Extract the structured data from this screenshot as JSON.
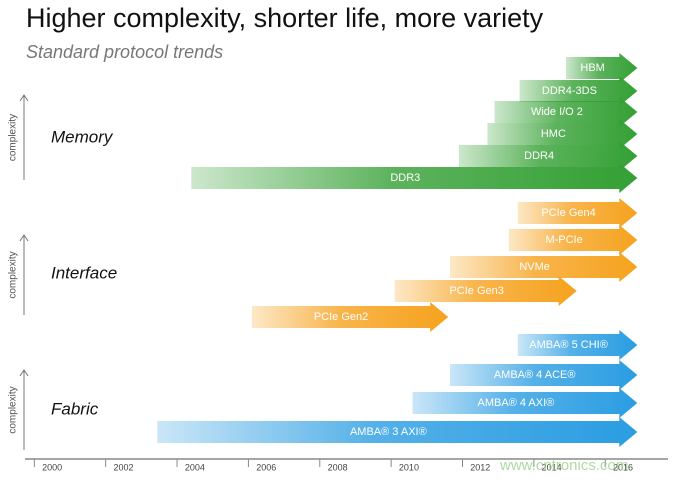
{
  "header": {
    "title": "Higher complexity, shorter life, more variety",
    "subtitle": "Standard protocol trends"
  },
  "axis": {
    "xlim": [
      1999.24,
      2017.26
    ],
    "ticks": [
      2000,
      2002,
      2004,
      2006,
      2008,
      2010,
      2012,
      2014,
      2016
    ],
    "y_label": "complexity"
  },
  "groups": [
    {
      "label": "Memory",
      "color": "#34a034",
      "arrows": [
        {
          "label": "HBM",
          "start": 2014.4,
          "end": 2016.4
        },
        {
          "label": "DDR4-3DS",
          "start": 2013.1,
          "end": 2016.4
        },
        {
          "label": "Wide I/O 2",
          "start": 2012.4,
          "end": 2016.4
        },
        {
          "label": "HMC",
          "start": 2012.2,
          "end": 2016.4
        },
        {
          "label": "DDR4",
          "start": 2011.4,
          "end": 2016.4
        },
        {
          "label": "DDR3",
          "start": 2003.9,
          "end": 2016.4
        }
      ]
    },
    {
      "label": "Interface",
      "color": "#f6a21e",
      "arrows": [
        {
          "label": "PCIe Gen4",
          "start": 2013.05,
          "end": 2016.4
        },
        {
          "label": "M-PCIe",
          "start": 2012.8,
          "end": 2016.4
        },
        {
          "label": "NVMe",
          "start": 2011.15,
          "end": 2016.4
        },
        {
          "label": "PCIe Gen3",
          "start": 2009.6,
          "end": 2014.7
        },
        {
          "label": "PCIe Gen2",
          "start": 2005.6,
          "end": 2011.1
        }
      ]
    },
    {
      "label": "Fabric",
      "color": "#2a9de2",
      "arrows": [
        {
          "label": "AMBA® 5 CHI®",
          "start": 2013.05,
          "end": 2016.4
        },
        {
          "label": "AMBA® 4 ACE®",
          "start": 2011.15,
          "end": 2016.4
        },
        {
          "label": "AMBA® 4 AXI®",
          "start": 2010.1,
          "end": 2016.4
        },
        {
          "label": "AMBA® 3 AXI®",
          "start": 2002.95,
          "end": 2016.4
        }
      ]
    }
  ],
  "watermark": "www.cntronics.com"
}
